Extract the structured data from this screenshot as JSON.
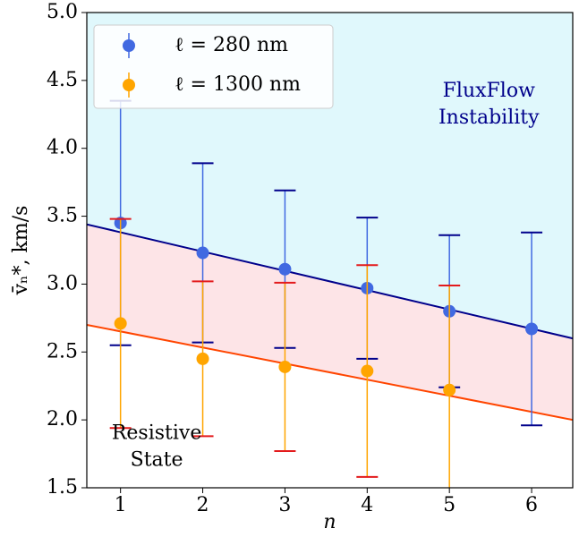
{
  "chart_data": {
    "type": "errorbar",
    "xlabel": "n",
    "ylabel": "v̄ₙ*, km/s",
    "xlim": [
      0.59,
      6.5
    ],
    "ylim": [
      1.5,
      5.0
    ],
    "xticks": [
      1,
      2,
      3,
      4,
      5,
      6
    ],
    "yticks": [
      1.5,
      {
        "value": 2,
        "label": "2.0"
      },
      2.5,
      {
        "value": 3,
        "label": "3.0"
      },
      3.5,
      {
        "value": 4,
        "label": "4.0"
      },
      4.5,
      {
        "value": 5,
        "label": "5.0"
      }
    ],
    "series": [
      {
        "name": "ℓ = 280 nm",
        "color": "#4169e1",
        "cap_color": "#00008b",
        "x": [
          1,
          2,
          3,
          4,
          5,
          6
        ],
        "values": [
          3.45,
          3.23,
          3.11,
          2.97,
          2.8,
          2.67
        ],
        "errors": [
          0.9,
          0.66,
          0.58,
          0.52,
          0.56,
          0.71
        ]
      },
      {
        "name": "ℓ = 1300 nm",
        "color": "#ffa500",
        "cap_color": "#e31a1c",
        "x": [
          1,
          2,
          3,
          4,
          5
        ],
        "values": [
          2.71,
          2.45,
          2.39,
          2.36,
          2.22
        ],
        "errors": [
          0.77,
          0.57,
          0.62,
          0.78,
          0.77
        ]
      }
    ],
    "fit_lines": [
      {
        "color": "#00008b",
        "x": [
          0.59,
          6.5
        ],
        "values": [
          3.44,
          2.6
        ]
      },
      {
        "color": "#ff4500",
        "x": [
          0.59,
          6.5
        ],
        "values": [
          2.7,
          2.0
        ]
      }
    ],
    "region_colors": [
      "#e0f8fc",
      "#fde4e7"
    ],
    "annotations": [
      {
        "lines": [
          "FluxFlow",
          "Instability"
        ],
        "color": "#00008b",
        "x": 5.48,
        "y": 4.42
      },
      {
        "lines": [
          "Resistive",
          "State"
        ],
        "color": "#000000",
        "x": 1.44,
        "y": 1.9
      }
    ],
    "legend": "upper left"
  }
}
